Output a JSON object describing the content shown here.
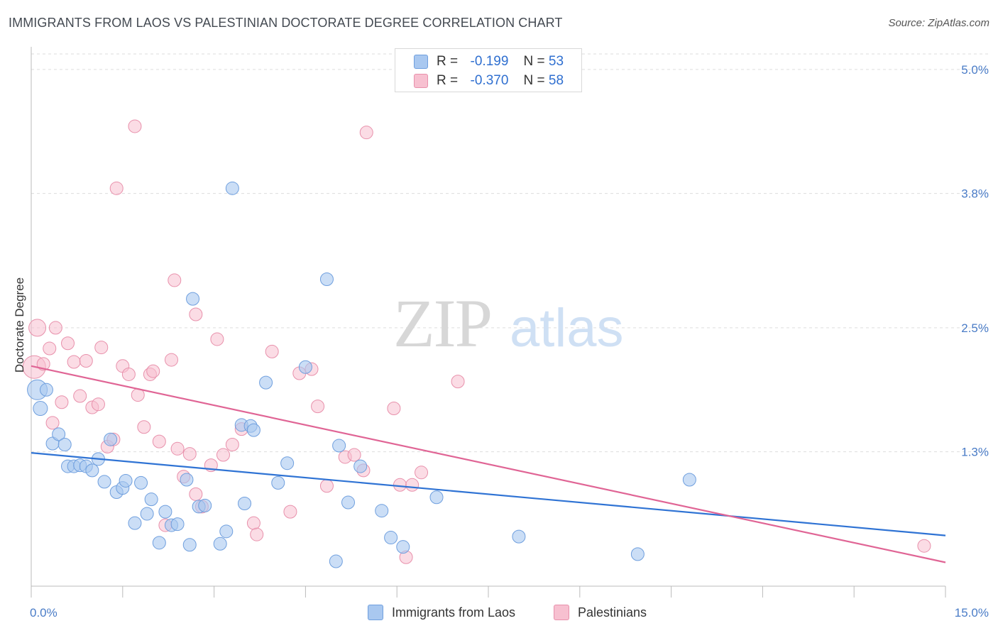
{
  "header": {
    "title": "IMMIGRANTS FROM LAOS VS PALESTINIAN DOCTORATE DEGREE CORRELATION CHART",
    "source": "Source: ZipAtlas.com"
  },
  "watermark": {
    "zip": "ZIP",
    "atlas": "atlas"
  },
  "colors": {
    "blue_fill": "#a9c8f0",
    "blue_stroke": "#6f9fde",
    "blue_line": "#2f73d4",
    "pink_fill": "#f7c0d0",
    "pink_stroke": "#e890ab",
    "pink_line": "#e06595",
    "tick_label": "#4a7cc7",
    "grid": "#dddddd"
  },
  "legend_top": {
    "rows": [
      {
        "r_label": "R =",
        "r_value": "-0.199",
        "n_label": "N =",
        "n_value": "53"
      },
      {
        "r_label": "R =",
        "r_value": "-0.370",
        "n_label": "N =",
        "n_value": "58"
      }
    ]
  },
  "legend_bottom": {
    "items": [
      {
        "label": "Immigrants from Laos"
      },
      {
        "label": "Palestinians"
      }
    ]
  },
  "chart_data": {
    "type": "scatter",
    "title": "IMMIGRANTS FROM LAOS VS PALESTINIAN DOCTORATE DEGREE CORRELATION CHART",
    "xlabel": "",
    "ylabel": "Doctorate Degree",
    "xlim": [
      0,
      15
    ],
    "ylim": [
      0,
      5.15
    ],
    "x_tick_labels": [
      {
        "value": 0,
        "label": "0.0%"
      },
      {
        "value": 15,
        "label": "15.0%"
      }
    ],
    "y_tick_labels": [
      {
        "value": 1.3,
        "label": "1.3%"
      },
      {
        "value": 2.5,
        "label": "2.5%"
      },
      {
        "value": 3.8,
        "label": "3.8%"
      },
      {
        "value": 5.0,
        "label": "5.0%"
      }
    ],
    "grid": true,
    "legend_position": "top-center",
    "series": [
      {
        "name": "Immigrants from Laos",
        "r": -0.199,
        "n": 53,
        "trend": [
          [
            0,
            1.29
          ],
          [
            15,
            0.49
          ]
        ],
        "points": [
          [
            0.1,
            1.9,
            14
          ],
          [
            0.15,
            1.72,
            10
          ],
          [
            0.25,
            1.9,
            9
          ],
          [
            0.35,
            1.38,
            9
          ],
          [
            0.45,
            1.47,
            9
          ],
          [
            0.55,
            1.37,
            9
          ],
          [
            0.6,
            1.16,
            9
          ],
          [
            0.7,
            1.16,
            9
          ],
          [
            0.8,
            1.17,
            9
          ],
          [
            0.9,
            1.16,
            9
          ],
          [
            1.0,
            1.12,
            9
          ],
          [
            1.1,
            1.23,
            9
          ],
          [
            1.2,
            1.01,
            9
          ],
          [
            1.3,
            1.42,
            9
          ],
          [
            1.4,
            0.91,
            9
          ],
          [
            1.5,
            0.95,
            9
          ],
          [
            1.55,
            1.02,
            9
          ],
          [
            1.7,
            0.61,
            9
          ],
          [
            1.8,
            1.0,
            9
          ],
          [
            1.9,
            0.7,
            9
          ],
          [
            1.97,
            0.84,
            9
          ],
          [
            2.1,
            0.42,
            9
          ],
          [
            2.2,
            0.72,
            9
          ],
          [
            2.3,
            0.59,
            9
          ],
          [
            2.4,
            0.6,
            9
          ],
          [
            2.55,
            1.03,
            9
          ],
          [
            2.6,
            0.4,
            9
          ],
          [
            2.65,
            2.78,
            9
          ],
          [
            2.75,
            0.77,
            9
          ],
          [
            2.85,
            0.78,
            9
          ],
          [
            3.1,
            0.41,
            9
          ],
          [
            3.2,
            0.53,
            9
          ],
          [
            3.3,
            3.85,
            9
          ],
          [
            3.45,
            1.56,
            9
          ],
          [
            3.5,
            0.8,
            9
          ],
          [
            3.6,
            1.55,
            9
          ],
          [
            3.65,
            1.51,
            9
          ],
          [
            3.85,
            1.97,
            9
          ],
          [
            4.05,
            1.0,
            9
          ],
          [
            4.2,
            1.19,
            9
          ],
          [
            4.5,
            2.12,
            9
          ],
          [
            4.85,
            2.97,
            9
          ],
          [
            5.0,
            0.24,
            9
          ],
          [
            5.05,
            1.36,
            9
          ],
          [
            5.2,
            0.81,
            9
          ],
          [
            5.4,
            1.16,
            9
          ],
          [
            5.75,
            0.73,
            9
          ],
          [
            5.9,
            0.47,
            9
          ],
          [
            6.1,
            0.38,
            9
          ],
          [
            6.65,
            0.86,
            9
          ],
          [
            8.0,
            0.48,
            9
          ],
          [
            9.95,
            0.31,
            9
          ],
          [
            10.8,
            1.03,
            9
          ]
        ]
      },
      {
        "name": "Palestinians",
        "r": -0.37,
        "n": 58,
        "trend": [
          [
            0,
            2.13
          ],
          [
            15,
            0.23
          ]
        ],
        "points": [
          [
            0.05,
            2.12,
            16
          ],
          [
            0.1,
            2.5,
            12
          ],
          [
            0.2,
            2.15,
            9
          ],
          [
            0.3,
            2.3,
            9
          ],
          [
            0.4,
            2.5,
            9
          ],
          [
            0.5,
            1.78,
            9
          ],
          [
            0.6,
            2.35,
            9
          ],
          [
            0.7,
            2.17,
            9
          ],
          [
            0.8,
            1.84,
            9
          ],
          [
            0.9,
            2.18,
            9
          ],
          [
            1.0,
            1.73,
            9
          ],
          [
            1.1,
            1.76,
            9
          ],
          [
            1.15,
            2.31,
            9
          ],
          [
            1.25,
            1.35,
            9
          ],
          [
            1.35,
            1.42,
            9
          ],
          [
            1.4,
            3.85,
            9
          ],
          [
            1.5,
            2.13,
            9
          ],
          [
            1.6,
            2.05,
            9
          ],
          [
            1.7,
            4.45,
            9
          ],
          [
            1.75,
            1.85,
            9
          ],
          [
            1.85,
            1.54,
            9
          ],
          [
            1.95,
            2.05,
            9
          ],
          [
            2.0,
            2.08,
            9
          ],
          [
            2.1,
            1.4,
            9
          ],
          [
            2.2,
            0.59,
            9
          ],
          [
            2.3,
            2.19,
            9
          ],
          [
            2.35,
            2.96,
            9
          ],
          [
            2.4,
            1.33,
            9
          ],
          [
            2.5,
            1.06,
            9
          ],
          [
            2.6,
            1.28,
            9
          ],
          [
            2.7,
            0.89,
            9
          ],
          [
            2.8,
            0.77,
            9
          ],
          [
            2.95,
            1.17,
            9
          ],
          [
            3.05,
            2.39,
            9
          ],
          [
            3.15,
            1.27,
            9
          ],
          [
            3.3,
            1.37,
            9
          ],
          [
            3.45,
            1.52,
            9
          ],
          [
            3.65,
            0.61,
            9
          ],
          [
            3.7,
            0.5,
            9
          ],
          [
            3.95,
            2.27,
            9
          ],
          [
            4.25,
            0.72,
            9
          ],
          [
            4.4,
            2.06,
            9
          ],
          [
            4.6,
            2.1,
            9
          ],
          [
            4.7,
            1.74,
            9
          ],
          [
            4.85,
            0.97,
            9
          ],
          [
            5.15,
            1.25,
            9
          ],
          [
            5.3,
            1.27,
            9
          ],
          [
            5.5,
            4.39,
            9
          ],
          [
            5.45,
            1.12,
            9
          ],
          [
            5.95,
            1.72,
            9
          ],
          [
            6.05,
            0.98,
            9
          ],
          [
            6.15,
            0.28,
            9
          ],
          [
            6.25,
            0.98,
            9
          ],
          [
            6.4,
            1.1,
            9
          ],
          [
            7.0,
            1.98,
            9
          ],
          [
            14.65,
            0.39,
            9
          ],
          [
            0.35,
            1.58,
            9
          ],
          [
            2.7,
            2.63,
            9
          ]
        ]
      }
    ]
  }
}
